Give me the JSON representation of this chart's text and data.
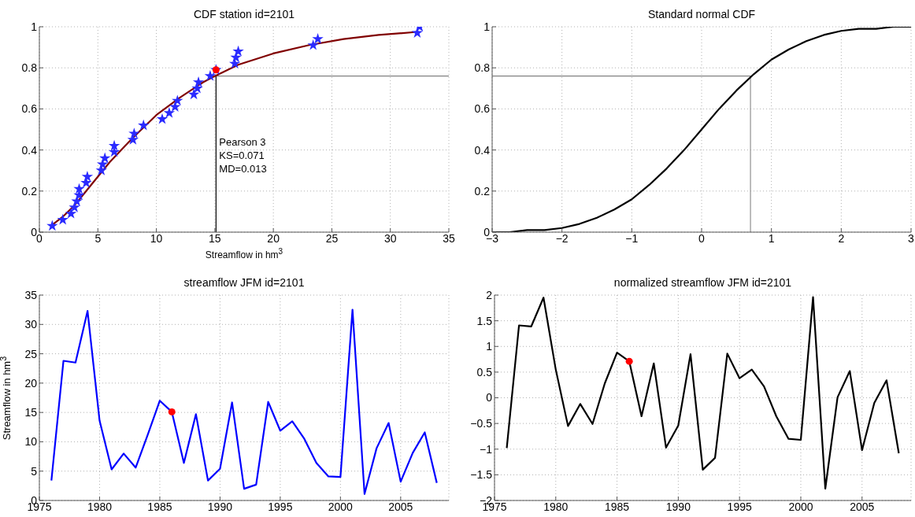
{
  "chart_data": [
    {
      "type": "scatter",
      "title": "CDF station id=2101",
      "xlabel": "Streamflow in hm$^{3}$",
      "xlim": [
        0,
        35
      ],
      "xticks": [
        0,
        5,
        10,
        15,
        20,
        25,
        30,
        35
      ],
      "ylim": [
        0,
        1
      ],
      "yticks": [
        0,
        0.2,
        0.4,
        0.6,
        0.8,
        1
      ],
      "grid": true,
      "series": [
        {
          "marker": "star",
          "color": "#2a2aff",
          "x": [
            1.1,
            2.0,
            2.7,
            3.0,
            3.2,
            3.4,
            3.4,
            4.0,
            4.1,
            5.3,
            5.4,
            5.6,
            6.4,
            6.4,
            8.0,
            8.1,
            8.9,
            10.5,
            11.1,
            11.6,
            11.8,
            13.2,
            13.5,
            13.6,
            14.6,
            15.1,
            16.7,
            16.8,
            17.0,
            23.4,
            23.8,
            32.3,
            32.5
          ],
          "values": [
            0.03,
            0.06,
            0.09,
            0.12,
            0.15,
            0.18,
            0.21,
            0.24,
            0.27,
            0.3,
            0.33,
            0.36,
            0.39,
            0.42,
            0.45,
            0.48,
            0.52,
            0.55,
            0.58,
            0.61,
            0.64,
            0.67,
            0.7,
            0.73,
            0.76,
            0.79,
            0.82,
            0.85,
            0.88,
            0.91,
            0.94,
            0.97,
            1.0
          ]
        },
        {
          "type": "line",
          "marker": "none",
          "color": "#800000",
          "x": [
            1.2,
            2,
            3,
            4,
            5,
            6,
            7,
            8,
            10,
            12,
            14,
            15,
            17,
            20,
            23,
            26,
            29,
            32.3
          ],
          "values": [
            0.04,
            0.075,
            0.13,
            0.2,
            0.27,
            0.34,
            0.4,
            0.46,
            0.57,
            0.655,
            0.73,
            0.76,
            0.815,
            0.87,
            0.91,
            0.94,
            0.96,
            0.975
          ]
        },
        {
          "marker": "circle",
          "color": "#ff0000",
          "x": [
            15.1
          ],
          "values": [
            0.79
          ]
        }
      ],
      "ref_lines": [
        {
          "axis": "x",
          "value": 15.1,
          "color": "#000000"
        },
        {
          "axis": "y",
          "value": 0.76,
          "color": "#808080"
        }
      ],
      "annotations": [
        "Pearson 3",
        "KS=0.071",
        "MD=0.013"
      ]
    },
    {
      "type": "line",
      "title": "Standard normal CDF",
      "xlim": [
        -3,
        3
      ],
      "xticks": [
        -3,
        -2,
        -1,
        0,
        1,
        2,
        3
      ],
      "ylim": [
        0,
        1
      ],
      "yticks": [
        0,
        0.2,
        0.4,
        0.6,
        0.8,
        1
      ],
      "grid": true,
      "series": [
        {
          "marker": "none",
          "color": "#000000",
          "x": [
            -3,
            -2.75,
            -2.5,
            -2.25,
            -2,
            -1.75,
            -1.5,
            -1.25,
            -1,
            -0.75,
            -0.5,
            -0.25,
            0,
            0.25,
            0.5,
            0.75,
            1,
            1.25,
            1.5,
            1.75,
            2,
            2.25,
            2.5,
            2.75,
            3
          ],
          "values": [
            0,
            0,
            0.01,
            0.01,
            0.02,
            0.04,
            0.07,
            0.11,
            0.16,
            0.23,
            0.31,
            0.4,
            0.5,
            0.6,
            0.69,
            0.77,
            0.84,
            0.89,
            0.93,
            0.96,
            0.98,
            0.99,
            0.99,
            1,
            1
          ]
        }
      ],
      "ref_lines": [
        {
          "axis": "x",
          "value": 0.7,
          "color": "#909090"
        },
        {
          "axis": "y",
          "value": 0.76,
          "color": "#808080"
        }
      ]
    },
    {
      "type": "line",
      "title": "streamflow JFM id=2101",
      "ylabel": "Streamflow in hm$^{3}$",
      "xlim": [
        1975,
        2009
      ],
      "xticks": [
        1975,
        1980,
        1985,
        1990,
        1995,
        2000,
        2005
      ],
      "ylim": [
        0,
        35
      ],
      "yticks": [
        0,
        5,
        10,
        15,
        20,
        25,
        30,
        35
      ],
      "grid": true,
      "series": [
        {
          "marker": "none",
          "color": "#0000ff",
          "x": [
            1976,
            1977,
            1978,
            1979,
            1980,
            1981,
            1982,
            1983,
            1984,
            1985,
            1986,
            1987,
            1988,
            1989,
            1990,
            1991,
            1992,
            1993,
            1994,
            1995,
            1996,
            1997,
            1998,
            1999,
            2000,
            2001,
            2002,
            2003,
            2004,
            2005,
            2006,
            2007,
            2008
          ],
          "values": [
            3.4,
            23.8,
            23.5,
            32.3,
            13.6,
            5.3,
            8.0,
            5.6,
            11.2,
            17.0,
            15.1,
            6.4,
            14.7,
            3.4,
            5.4,
            16.7,
            2.0,
            2.7,
            16.8,
            11.9,
            13.5,
            10.5,
            6.4,
            4.1,
            4.0,
            32.5,
            1.1,
            8.9,
            13.2,
            3.2,
            8.1,
            11.6,
            3.0
          ]
        },
        {
          "type": "scatter",
          "marker": "circle",
          "color": "#ff0000",
          "x": [
            1986
          ],
          "values": [
            15.1
          ]
        }
      ]
    },
    {
      "type": "line",
      "title": "normalized streamflow JFM id=2101",
      "xlim": [
        1975,
        2009
      ],
      "xticks": [
        1975,
        1980,
        1985,
        1990,
        1995,
        2000,
        2005
      ],
      "ylim": [
        -2,
        2
      ],
      "yticks": [
        -2,
        -1.5,
        -1,
        -0.5,
        0,
        0.5,
        1,
        1.5,
        2
      ],
      "grid": true,
      "series": [
        {
          "marker": "none",
          "color": "#000000",
          "x": [
            1976,
            1977,
            1978,
            1979,
            1980,
            1981,
            1982,
            1983,
            1984,
            1985,
            1986,
            1987,
            1988,
            1989,
            1990,
            1991,
            1992,
            1993,
            1994,
            1995,
            1996,
            1997,
            1998,
            1999,
            2000,
            2001,
            2002,
            2003,
            2004,
            2005,
            2006,
            2007,
            2008
          ],
          "values": [
            -0.98,
            1.41,
            1.39,
            1.95,
            0.55,
            -0.55,
            -0.12,
            -0.51,
            0.28,
            0.88,
            0.71,
            -0.36,
            0.67,
            -0.97,
            -0.54,
            0.85,
            -1.4,
            -1.17,
            0.86,
            0.38,
            0.55,
            0.22,
            -0.36,
            -0.8,
            -0.82,
            1.96,
            -1.77,
            0.01,
            0.52,
            -1.02,
            -0.1,
            0.34,
            -1.08
          ]
        },
        {
          "type": "scatter",
          "marker": "circle",
          "color": "#ff0000",
          "x": [
            1986
          ],
          "values": [
            0.71
          ]
        }
      ]
    }
  ]
}
